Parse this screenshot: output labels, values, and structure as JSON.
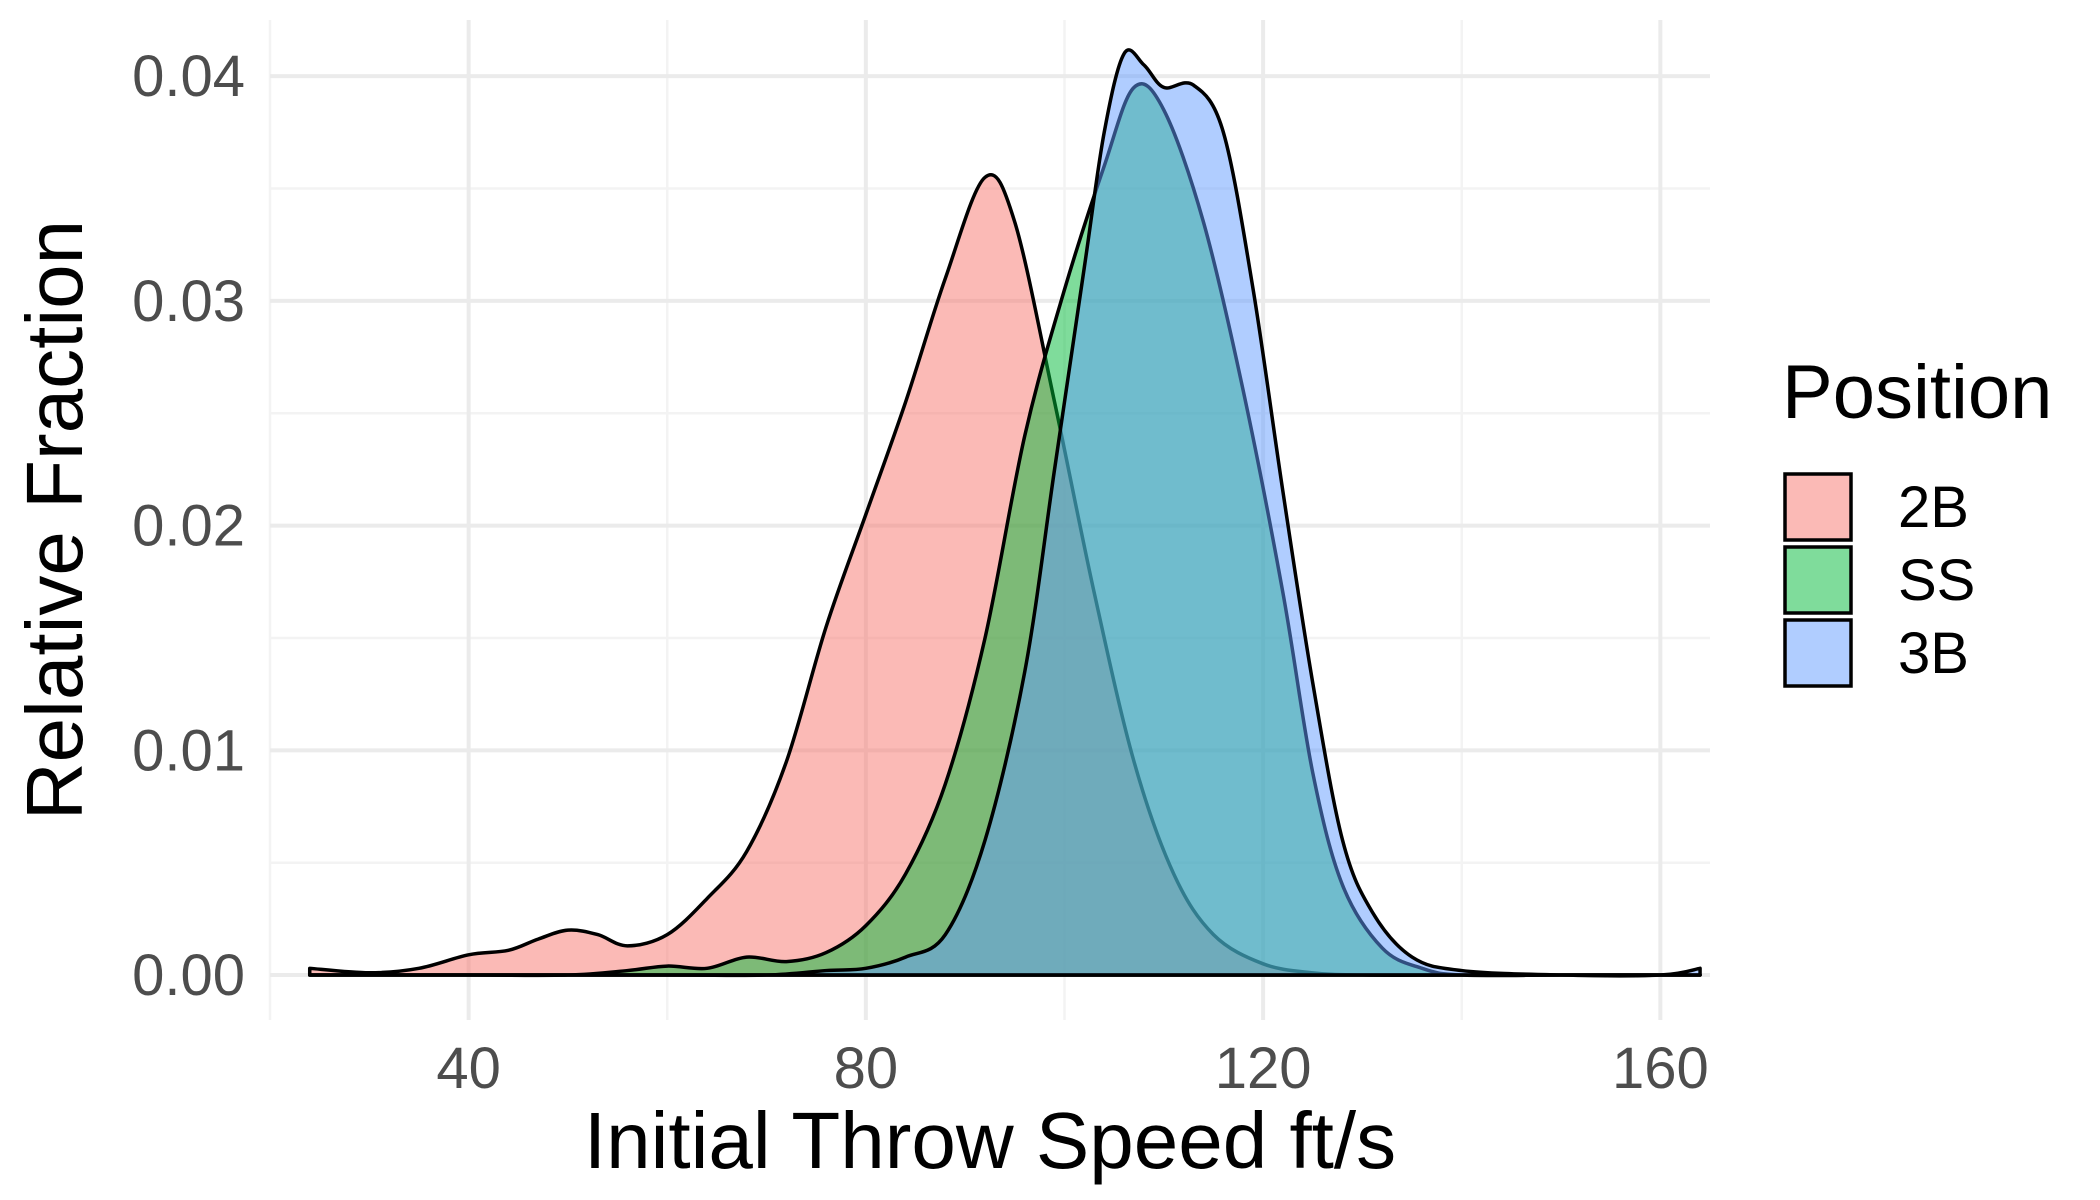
{
  "chart_data": {
    "type": "area",
    "xlabel": "Initial Throw Speed ft/s",
    "ylabel": "Relative Fraction",
    "xlim": [
      20,
      165
    ],
    "ylim": [
      -0.002,
      0.0425
    ],
    "x_ticks": [
      40,
      80,
      120,
      160
    ],
    "x_tick_labels": [
      "40",
      "80",
      "120",
      "160"
    ],
    "y_ticks": [
      0.0,
      0.01,
      0.02,
      0.03,
      0.04
    ],
    "y_tick_labels": [
      "0.00",
      "0.01",
      "0.02",
      "0.03",
      "0.04"
    ],
    "grid": true,
    "legend": {
      "title": "Position",
      "placement": "right"
    },
    "series": [
      {
        "name": "2B",
        "color": "#F8766D",
        "points": [
          [
            24,
            0.0003
          ],
          [
            30,
            0.0001
          ],
          [
            35,
            0.0003
          ],
          [
            40,
            0.0009
          ],
          [
            44,
            0.0011
          ],
          [
            47,
            0.0016
          ],
          [
            50,
            0.002
          ],
          [
            53,
            0.0018
          ],
          [
            56,
            0.0013
          ],
          [
            60,
            0.0018
          ],
          [
            64,
            0.0034
          ],
          [
            68,
            0.0055
          ],
          [
            72,
            0.0095
          ],
          [
            76,
            0.0155
          ],
          [
            80,
            0.0205
          ],
          [
            84,
            0.0255
          ],
          [
            88,
            0.031
          ],
          [
            92,
            0.0355
          ],
          [
            95,
            0.0335
          ],
          [
            99,
            0.0255
          ],
          [
            103,
            0.017
          ],
          [
            107,
            0.0095
          ],
          [
            111,
            0.0045
          ],
          [
            115,
            0.0018
          ],
          [
            120,
            0.0005
          ],
          [
            125,
            0.0001
          ],
          [
            130,
            0.0
          ],
          [
            140,
            0.0
          ],
          [
            150,
            0.0
          ],
          [
            160,
            0.0
          ],
          [
            164,
            0.0
          ]
        ]
      },
      {
        "name": "SS",
        "color": "#00BA38",
        "points": [
          [
            24,
            0.0
          ],
          [
            40,
            0.0
          ],
          [
            50,
            0.0
          ],
          [
            56,
            0.0002
          ],
          [
            60,
            0.0004
          ],
          [
            64,
            0.0003
          ],
          [
            68,
            0.0008
          ],
          [
            72,
            0.0006
          ],
          [
            76,
            0.001
          ],
          [
            80,
            0.0022
          ],
          [
            84,
            0.0045
          ],
          [
            88,
            0.0085
          ],
          [
            92,
            0.015
          ],
          [
            96,
            0.024
          ],
          [
            100,
            0.0305
          ],
          [
            104,
            0.036
          ],
          [
            107,
            0.0395
          ],
          [
            110,
            0.0385
          ],
          [
            114,
            0.0335
          ],
          [
            118,
            0.026
          ],
          [
            122,
            0.017
          ],
          [
            125,
            0.009
          ],
          [
            128,
            0.004
          ],
          [
            132,
            0.0012
          ],
          [
            136,
            0.0003
          ],
          [
            140,
            0.0
          ],
          [
            150,
            0.0
          ],
          [
            160,
            0.0
          ],
          [
            164,
            0.0
          ]
        ]
      },
      {
        "name": "3B",
        "color": "#619CFF",
        "points": [
          [
            24,
            0.0
          ],
          [
            40,
            0.0
          ],
          [
            60,
            0.0
          ],
          [
            70,
            0.0
          ],
          [
            76,
            0.0002
          ],
          [
            80,
            0.0003
          ],
          [
            84,
            0.0008
          ],
          [
            88,
            0.0018
          ],
          [
            92,
            0.006
          ],
          [
            96,
            0.0135
          ],
          [
            99,
            0.0225
          ],
          [
            102,
            0.0315
          ],
          [
            104,
            0.0375
          ],
          [
            106,
            0.041
          ],
          [
            108,
            0.0405
          ],
          [
            110,
            0.0395
          ],
          [
            113,
            0.0396
          ],
          [
            116,
            0.0375
          ],
          [
            119,
            0.0305
          ],
          [
            122,
            0.0215
          ],
          [
            125,
            0.013
          ],
          [
            128,
            0.006
          ],
          [
            131,
            0.0028
          ],
          [
            135,
            0.0008
          ],
          [
            140,
            0.0002
          ],
          [
            150,
            0.0
          ],
          [
            160,
            0.0
          ],
          [
            164,
            0.0003
          ]
        ]
      }
    ]
  }
}
